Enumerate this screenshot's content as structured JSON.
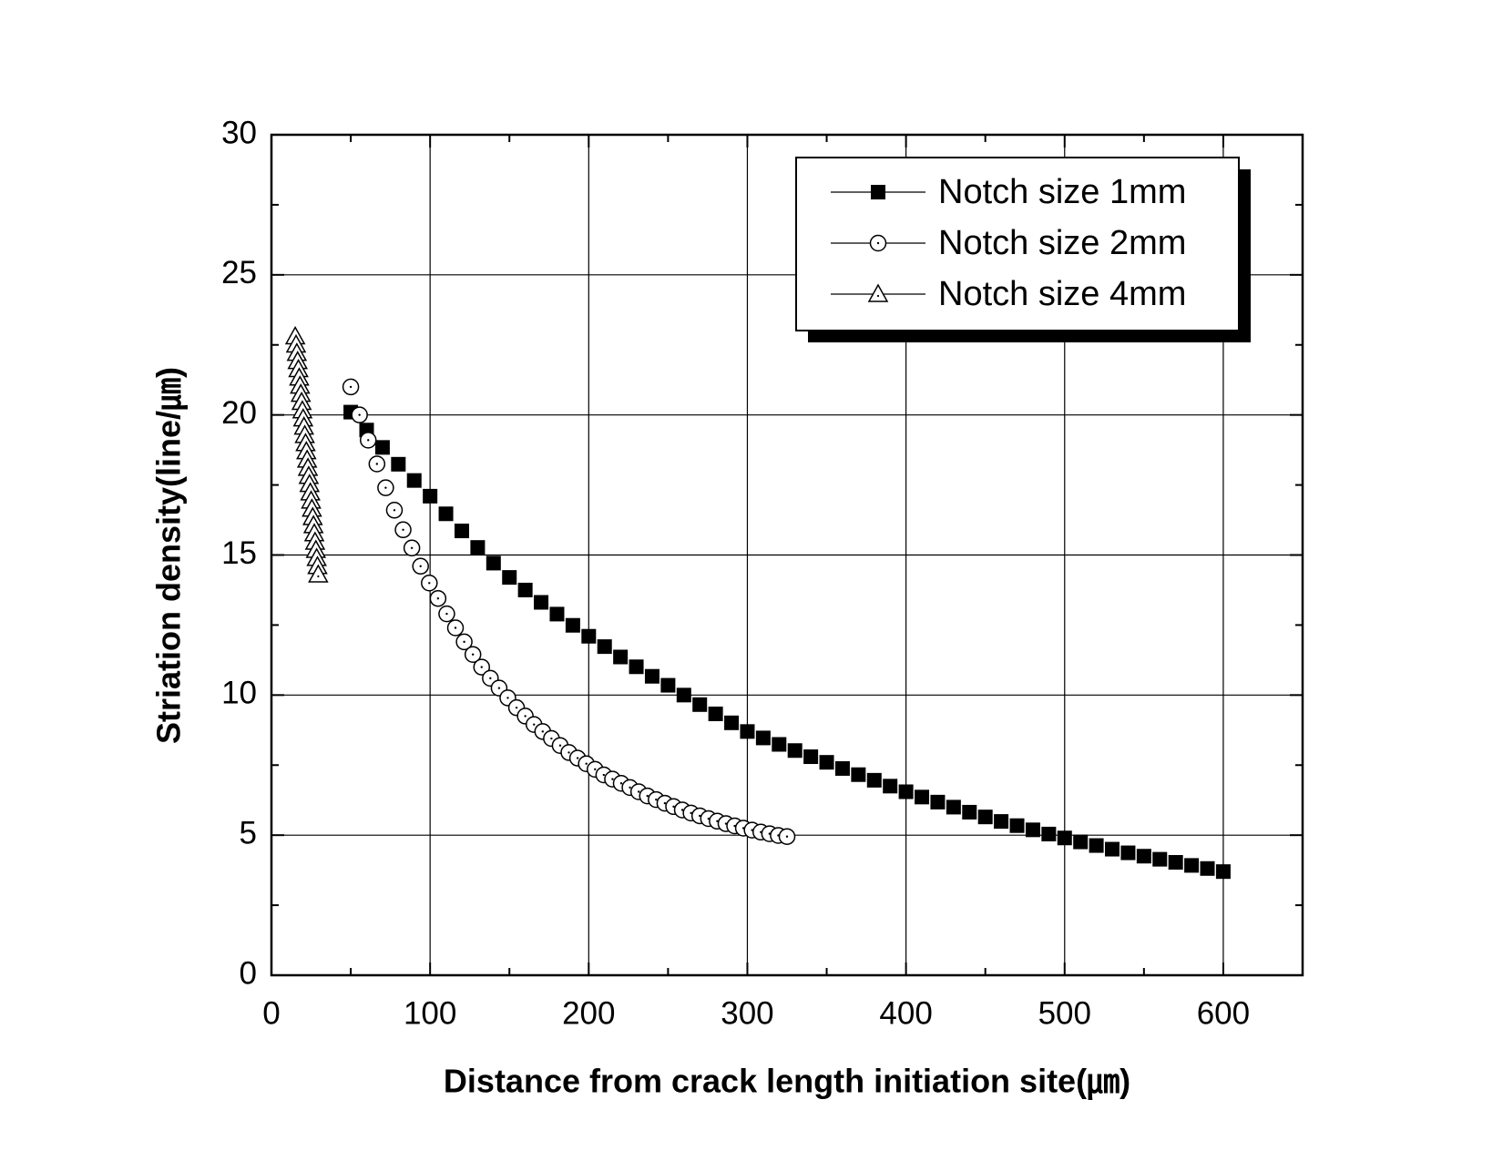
{
  "chart_data": {
    "type": "scatter",
    "xlabel": "Distance from crack length initiation site(㎛)",
    "ylabel": "Striation density(line/㎛)",
    "xlim": [
      0,
      650
    ],
    "ylim": [
      0,
      30
    ],
    "xticks": [
      0,
      100,
      200,
      300,
      400,
      500,
      600
    ],
    "yticks": [
      0,
      5,
      10,
      15,
      20,
      25,
      30
    ],
    "xminorticks": [
      50,
      150,
      250,
      350,
      450,
      550
    ],
    "yminorticks": [
      2.5,
      7.5,
      12.5,
      17.5,
      22.5,
      27.5
    ],
    "grid": true,
    "legend": "upper right",
    "series": [
      {
        "name": "Notch size 1mm",
        "color": "#000000",
        "marker": "square",
        "x": [
          50,
          60,
          70,
          80,
          90,
          100,
          110,
          120,
          130,
          140,
          150,
          160,
          170,
          180,
          190,
          200,
          210,
          220,
          230,
          240,
          250,
          260,
          270,
          280,
          290,
          300,
          310,
          320,
          330,
          340,
          350,
          360,
          370,
          380,
          390,
          400,
          410,
          420,
          430,
          440,
          450,
          460,
          470,
          480,
          490,
          500,
          510,
          520,
          530,
          540,
          550,
          560,
          570,
          580,
          590,
          600
        ],
        "values": [
          20.1,
          19.46,
          18.84,
          18.24,
          17.66,
          17.1,
          16.47,
          15.86,
          15.27,
          14.71,
          14.2,
          13.75,
          13.31,
          12.89,
          12.49,
          12.1,
          11.73,
          11.36,
          11.01,
          10.67,
          10.35,
          10.0,
          9.66,
          9.33,
          9.01,
          8.7,
          8.47,
          8.24,
          8.02,
          7.8,
          7.6,
          7.38,
          7.16,
          6.96,
          6.75,
          6.55,
          6.36,
          6.18,
          6.0,
          5.82,
          5.65,
          5.49,
          5.34,
          5.19,
          5.04,
          4.9,
          4.76,
          4.63,
          4.5,
          4.37,
          4.25,
          4.14,
          4.03,
          3.92,
          3.81,
          3.7
        ]
      },
      {
        "name": "Notch size 2mm",
        "color": "#000000",
        "marker": "circle",
        "x": [
          50,
          55.5,
          61,
          66.5,
          72,
          77.5,
          83,
          88.5,
          94,
          99.5,
          105,
          110.5,
          116,
          121.5,
          127,
          132.5,
          138,
          143.5,
          149,
          154.5,
          160,
          165.5,
          171,
          176.5,
          182,
          187.5,
          193,
          198.5,
          204,
          209.5,
          215,
          220.5,
          226,
          231.5,
          237,
          242.5,
          248,
          253.5,
          259,
          264.5,
          270,
          275.5,
          281,
          286.5,
          292,
          297.5,
          303,
          308.5,
          314,
          319.5,
          325
        ],
        "values": [
          21.0,
          20.0,
          19.1,
          18.25,
          17.4,
          16.6,
          15.9,
          15.25,
          14.6,
          14.0,
          13.45,
          12.9,
          12.4,
          11.9,
          11.45,
          11.0,
          10.6,
          10.25,
          9.9,
          9.55,
          9.25,
          8.95,
          8.7,
          8.45,
          8.2,
          7.95,
          7.75,
          7.55,
          7.35,
          7.15,
          7.0,
          6.85,
          6.7,
          6.55,
          6.4,
          6.27,
          6.14,
          6.02,
          5.9,
          5.79,
          5.69,
          5.59,
          5.5,
          5.41,
          5.33,
          5.25,
          5.18,
          5.11,
          5.05,
          4.99,
          4.95
        ]
      },
      {
        "name": "Notch size 4mm",
        "color": "#000000",
        "marker": "triangle",
        "x": [
          15,
          15.5,
          16,
          16.5,
          17,
          17.5,
          18,
          18.5,
          19,
          19.5,
          20,
          20.5,
          21,
          21.5,
          22,
          22.5,
          23,
          23.5,
          24,
          24.5,
          25,
          25.5,
          26,
          26.5,
          27,
          27.5,
          28,
          28.5,
          29,
          29.5
        ],
        "values": [
          22.8,
          22.51,
          22.21,
          21.92,
          21.63,
          21.33,
          21.04,
          20.75,
          20.46,
          20.16,
          19.87,
          19.58,
          19.28,
          18.99,
          18.7,
          18.4,
          18.11,
          17.82,
          17.53,
          17.23,
          16.94,
          16.65,
          16.35,
          16.06,
          15.77,
          15.47,
          15.18,
          14.89,
          14.6,
          14.3
        ]
      }
    ]
  }
}
